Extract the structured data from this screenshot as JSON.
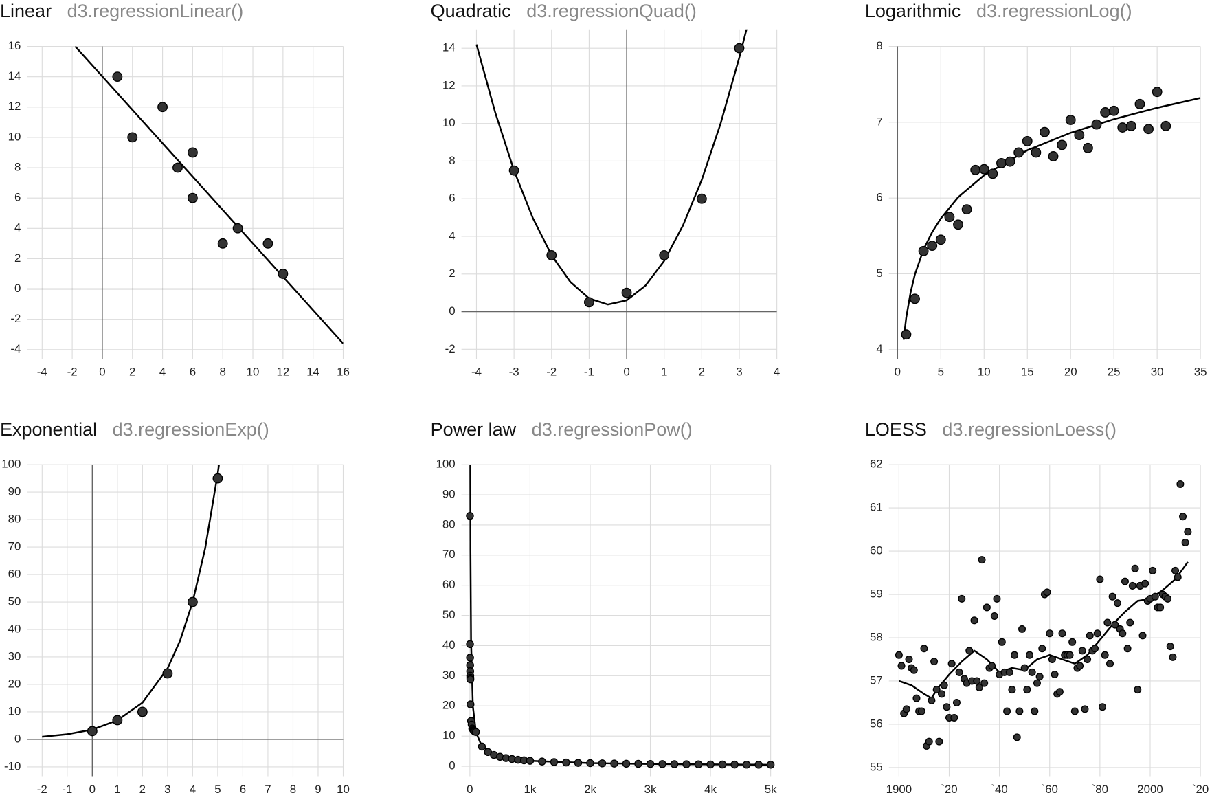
{
  "chart_data": [
    {
      "type": "scatter",
      "title": "Linear",
      "subtitle": "d3.regressionLinear()",
      "point_color": "#333333",
      "line_color": "#000000",
      "grid": true,
      "zero_axes": true,
      "points": {
        "x": [
          1,
          2,
          4,
          5,
          6,
          6,
          8,
          9,
          11,
          12
        ],
        "y": [
          14,
          10,
          12,
          8,
          9,
          6,
          3,
          4,
          3,
          1
        ]
      },
      "fit": {
        "x": [
          -1.8,
          16
        ],
        "y": [
          16,
          -3.6
        ]
      },
      "xlim": [
        -5,
        16
      ],
      "ylim": [
        -4.6,
        16
      ],
      "xticks": [
        -4,
        -2,
        0,
        2,
        4,
        6,
        8,
        10,
        12,
        14,
        16
      ],
      "yticks": [
        -4,
        -2,
        0,
        2,
        4,
        6,
        8,
        10,
        12,
        14,
        16
      ]
    },
    {
      "type": "scatter",
      "title": "Quadratic",
      "subtitle": "d3.regressionQuad()",
      "point_color": "#333333",
      "line_color": "#000000",
      "grid": true,
      "zero_axes": true,
      "points": {
        "x": [
          -3,
          -2,
          -1,
          0,
          1,
          2,
          3
        ],
        "y": [
          7.5,
          3,
          0.5,
          1,
          3,
          6,
          14
        ]
      },
      "fit": {
        "x": [
          -4,
          -3.5,
          -3,
          -2.5,
          -2,
          -1.5,
          -1,
          -0.5,
          0,
          0.5,
          1,
          1.5,
          2,
          2.5,
          3,
          3.2
        ],
        "y": [
          14.2,
          10.58,
          7.5,
          4.98,
          3.0,
          1.58,
          0.7,
          0.38,
          0.6,
          1.38,
          2.7,
          4.58,
          7.0,
          9.98,
          13.5,
          15.06
        ]
      },
      "xlim": [
        -4.4,
        4
      ],
      "ylim": [
        -2.5,
        15
      ],
      "xticks": [
        -4,
        -3,
        -2,
        -1,
        0,
        1,
        2,
        3,
        4
      ],
      "yticks": [
        -2,
        0,
        2,
        4,
        6,
        8,
        10,
        12,
        14
      ]
    },
    {
      "type": "scatter",
      "title": "Logarithmic",
      "subtitle": "d3.regressionLog()",
      "point_color": "#333333",
      "line_color": "#000000",
      "grid": true,
      "zero_axes": true,
      "points": {
        "x": [
          1,
          2,
          3,
          4,
          5,
          6,
          7,
          8,
          9,
          10,
          11,
          12,
          13,
          14,
          15,
          16,
          17,
          18,
          19,
          20,
          21,
          22,
          23,
          24,
          25,
          26,
          27,
          28,
          29,
          30,
          31
        ],
        "y": [
          4.2,
          4.67,
          5.3,
          5.37,
          5.45,
          5.75,
          5.65,
          5.85,
          6.37,
          6.38,
          6.32,
          6.46,
          6.48,
          6.6,
          6.75,
          6.6,
          6.87,
          6.55,
          6.7,
          7.03,
          6.83,
          6.66,
          6.97,
          7.13,
          7.15,
          6.93,
          6.95,
          7.24,
          6.91,
          7.4,
          6.95
        ]
      },
      "fit": {
        "x": [
          0.7,
          1,
          1.5,
          2,
          3,
          4,
          5,
          7,
          10,
          15,
          20,
          25,
          30,
          35
        ],
        "y": [
          4.13,
          4.42,
          4.75,
          4.99,
          5.32,
          5.55,
          5.73,
          6.01,
          6.3,
          6.63,
          6.86,
          7.04,
          7.19,
          7.32
        ]
      },
      "xlim": [
        -1,
        35
      ],
      "ylim": [
        3.88,
        8
      ],
      "xticks": [
        0,
        5,
        10,
        15,
        20,
        25,
        30,
        35
      ],
      "yticks": [
        4,
        5,
        6,
        7,
        8
      ]
    },
    {
      "type": "scatter",
      "title": "Exponential",
      "subtitle": "d3.regressionExp()",
      "point_color": "#333333",
      "line_color": "#000000",
      "grid": true,
      "zero_axes": true,
      "points": {
        "x": [
          0,
          1,
          2,
          3,
          4,
          5
        ],
        "y": [
          3,
          7,
          10,
          24,
          50,
          95
        ]
      },
      "fit": {
        "x": [
          -2,
          -1,
          0,
          1,
          2,
          3,
          3.5,
          4,
          4.5,
          5,
          5.05
        ],
        "y": [
          0.95,
          1.85,
          3.57,
          6.91,
          13.36,
          25.85,
          35.96,
          50.03,
          69.58,
          96.79,
          100
        ]
      },
      "xlim": [
        -2.6,
        10
      ],
      "ylim": [
        -13.4,
        100
      ],
      "xticks": [
        -2,
        -1,
        0,
        1,
        2,
        3,
        4,
        5,
        6,
        7,
        8,
        9,
        10
      ],
      "yticks": [
        -10,
        0,
        10,
        20,
        30,
        40,
        50,
        60,
        70,
        80,
        90,
        100
      ]
    },
    {
      "type": "scatter",
      "title": "Power law",
      "subtitle": "d3.regressionPow()",
      "point_color": "#333333",
      "line_color": "#000000",
      "grid": true,
      "zero_axes": false,
      "points": {
        "x": [
          1,
          2,
          3,
          4,
          5,
          6,
          7,
          8,
          10,
          20,
          30,
          40,
          50,
          60,
          70,
          80,
          100,
          200,
          300,
          400,
          500,
          600,
          700,
          800,
          900,
          1000,
          1200,
          1400,
          1600,
          1800,
          2000,
          2200,
          2400,
          2600,
          2800,
          3000,
          3200,
          3400,
          3600,
          3800,
          4000,
          4200,
          4400,
          4600,
          4800,
          5000
        ],
        "y": [
          83,
          40.5,
          36,
          33.5,
          31.5,
          30,
          29.3,
          28.8,
          20.5,
          15,
          13.8,
          12.5,
          12.2,
          11.9,
          11.7,
          11.5,
          11.36,
          6.52,
          4.72,
          3.75,
          3.13,
          2.71,
          2.4,
          2.15,
          1.96,
          1.8,
          1.56,
          1.38,
          1.24,
          1.12,
          1.03,
          0.96,
          0.89,
          0.84,
          0.79,
          0.75,
          0.71,
          0.68,
          0.65,
          0.62,
          0.59,
          0.57,
          0.55,
          0.53,
          0.51,
          0.5
        ]
      },
      "fit": {
        "x": [
          6.6,
          10,
          20,
          50,
          100,
          200,
          500,
          1000,
          2000,
          3000,
          4000,
          5000
        ],
        "y": [
          100,
          71.7,
          41.2,
          19.78,
          11.36,
          6.52,
          3.13,
          1.8,
          1.03,
          0.75,
          0.59,
          0.5
        ]
      },
      "xlim": [
        -140,
        5000
      ],
      "ylim": [
        -3.3,
        100
      ],
      "xticks": [
        0,
        {
          "value": 1000,
          "label": "1k"
        },
        {
          "value": 2000,
          "label": "2k"
        },
        {
          "value": 3000,
          "label": "3k"
        },
        {
          "value": 4000,
          "label": "4k"
        },
        {
          "value": 5000,
          "label": "5k"
        }
      ],
      "yticks": [
        0,
        10,
        20,
        30,
        40,
        50,
        60,
        70,
        80,
        90,
        100
      ]
    },
    {
      "type": "scatter",
      "title": "LOESS",
      "subtitle": "d3.regressionLoess()",
      "point_color": "#333333",
      "line_color": "#000000",
      "grid": true,
      "zero_axes": false,
      "points": {
        "x": [
          1900,
          1901,
          1902,
          1903,
          1904,
          1905,
          1906,
          1907,
          1908,
          1909,
          1910,
          1911,
          1912,
          1913,
          1914,
          1915,
          1916,
          1917,
          1918,
          1919,
          1920,
          1921,
          1922,
          1923,
          1924,
          1925,
          1926,
          1927,
          1928,
          1929,
          1930,
          1931,
          1932,
          1933,
          1934,
          1935,
          1936,
          1937,
          1938,
          1939,
          1940,
          1941,
          1942,
          1943,
          1944,
          1945,
          1946,
          1947,
          1948,
          1949,
          1950,
          1951,
          1952,
          1953,
          1954,
          1955,
          1956,
          1957,
          1958,
          1959,
          1960,
          1961,
          1962,
          1963,
          1964,
          1965,
          1966,
          1967,
          1968,
          1969,
          1970,
          1971,
          1972,
          1973,
          1974,
          1975,
          1976,
          1977,
          1978,
          1979,
          1980,
          1981,
          1982,
          1983,
          1984,
          1985,
          1986,
          1987,
          1988,
          1989,
          1990,
          1991,
          1992,
          1993,
          1994,
          1995,
          1996,
          1997,
          1998,
          1999,
          2000,
          2001,
          2002,
          2003,
          2004,
          2005,
          2006,
          2007,
          2008,
          2009,
          2010,
          2011,
          2012,
          2013,
          2014,
          2015
        ],
        "y": [
          57.6,
          57.35,
          56.25,
          56.35,
          57.5,
          57.3,
          57.25,
          56.6,
          56.3,
          56.3,
          57.75,
          55.5,
          55.6,
          56.55,
          57.45,
          56.8,
          55.6,
          56.7,
          56.9,
          56.4,
          56.15,
          57.4,
          56.15,
          56.5,
          57.2,
          58.9,
          57.05,
          56.95,
          57.7,
          57.0,
          58.4,
          57.0,
          56.85,
          59.8,
          56.95,
          58.7,
          57.3,
          57.35,
          58.5,
          58.9,
          57.15,
          57.9,
          57.2,
          56.3,
          57.2,
          56.8,
          57.6,
          55.7,
          56.3,
          58.2,
          57.3,
          56.8,
          57.6,
          57.2,
          56.3,
          56.95,
          57.1,
          57.75,
          59.0,
          59.05,
          58.1,
          57.5,
          57.15,
          56.7,
          56.75,
          58.1,
          57.6,
          57.6,
          57.6,
          57.9,
          56.3,
          57.3,
          57.35,
          57.7,
          56.35,
          57.5,
          58.05,
          57.7,
          57.75,
          58.1,
          59.35,
          56.4,
          57.6,
          58.35,
          57.4,
          58.95,
          58.3,
          58.8,
          58.2,
          58.1,
          59.3,
          57.75,
          58.35,
          59.2,
          59.6,
          56.8,
          59.2,
          58.05,
          59.25,
          58.85,
          58.9,
          59.55,
          58.95,
          58.7,
          58.7,
          59.0,
          58.95,
          58.9,
          57.8,
          57.55,
          59.55,
          59.4,
          61.55,
          60.8,
          60.2,
          60.45
        ]
      },
      "fit": {
        "x": [
          1900,
          1905,
          1910,
          1913,
          1915,
          1920,
          1925,
          1930,
          1935,
          1940,
          1945,
          1950,
          1955,
          1960,
          1965,
          1970,
          1975,
          1980,
          1985,
          1990,
          1995,
          2000,
          2005,
          2010,
          2015
        ],
        "y": [
          57.0,
          56.9,
          56.7,
          56.6,
          56.8,
          57.15,
          57.45,
          57.7,
          57.5,
          57.2,
          57.3,
          57.25,
          57.5,
          57.6,
          57.5,
          57.4,
          57.6,
          57.95,
          58.3,
          58.6,
          58.85,
          58.9,
          59.1,
          59.35,
          59.75
        ]
      },
      "xlim": [
        1896,
        2020
      ],
      "ylim": [
        54.8,
        62
      ],
      "xticks": [
        1900,
        {
          "value": 1920,
          "label": "`20"
        },
        {
          "value": 1940,
          "label": "`40"
        },
        {
          "value": 1960,
          "label": "`60"
        },
        {
          "value": 1980,
          "label": "`80"
        },
        2000,
        {
          "value": 2020,
          "label": "`20"
        }
      ],
      "yticks": [
        55,
        56,
        57,
        58,
        59,
        60,
        61,
        62
      ]
    }
  ]
}
